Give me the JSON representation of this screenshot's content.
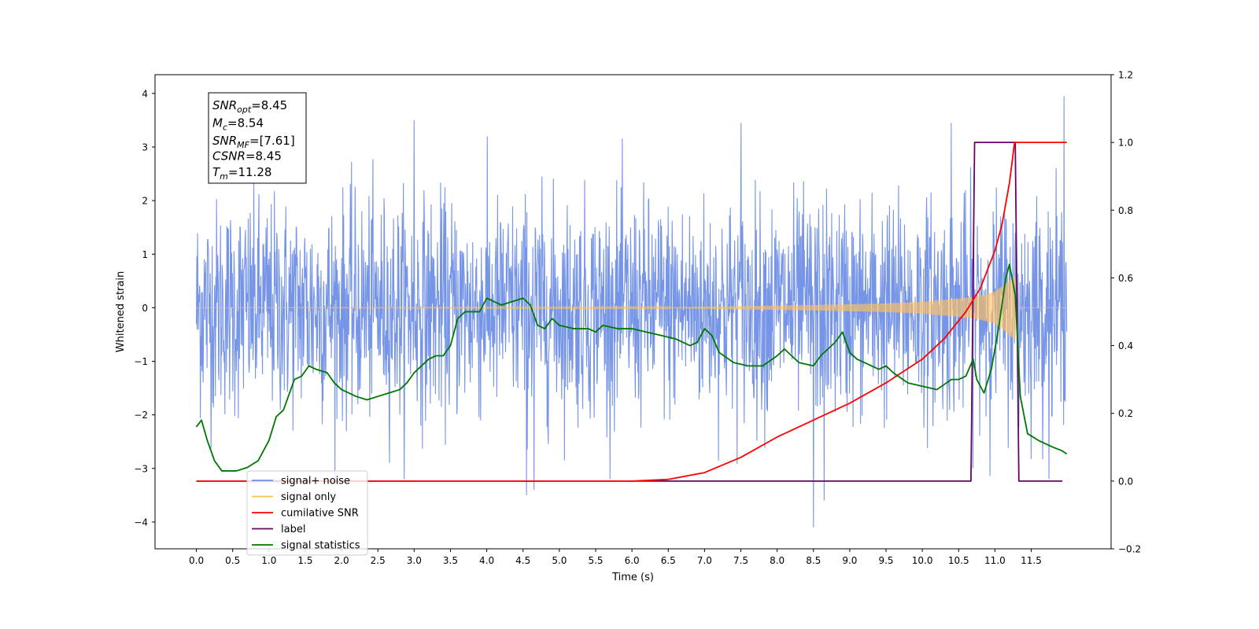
{
  "chart_data": {
    "type": "line",
    "xlabel": "Time (s)",
    "ylabel": "Whitened strain",
    "xlim": [
      -0.57,
      12.6
    ],
    "ylim": [
      -4.5,
      4.35
    ],
    "y2lim": [
      -0.2,
      1.2
    ],
    "x_ticks": [
      0.0,
      0.5,
      1.0,
      1.5,
      2.0,
      2.5,
      3.0,
      3.5,
      4.0,
      4.5,
      5.0,
      5.5,
      6.0,
      6.5,
      7.0,
      7.5,
      8.0,
      8.5,
      9.0,
      9.5,
      10.0,
      10.5,
      11.0,
      11.5
    ],
    "x_tick_labels": [
      "0.0",
      "0.5",
      "1.0",
      "1.5",
      "2.0",
      "2.5",
      "3.0",
      "3.5",
      "4.0",
      "4.5",
      "5.0",
      "5.5",
      "6.0",
      "6.5",
      "7.0",
      "7.5",
      "8.0",
      "8.5",
      "9.0",
      "9.5",
      "10.0",
      "10.5",
      "11.0",
      "11.5"
    ],
    "y_ticks": [
      -4,
      -3,
      -2,
      -1,
      0,
      1,
      2,
      3,
      4
    ],
    "y_tick_labels": [
      "−4",
      "−3",
      "−2",
      "−1",
      "0",
      "1",
      "2",
      "3",
      "4"
    ],
    "y2_ticks": [
      -0.2,
      0.0,
      0.2,
      0.4,
      0.6,
      0.8,
      1.0,
      1.2
    ],
    "y2_tick_labels": [
      "−0.2",
      "0.0",
      "0.2",
      "0.4",
      "0.6",
      "0.8",
      "1.0",
      "1.2"
    ],
    "grid": false,
    "legend_position": "lower-left",
    "legend": [
      {
        "label": "signal+ noise",
        "color": "#6f8fe6"
      },
      {
        "label": "signal only",
        "color": "#ffbf4d"
      },
      {
        "label": "cumilative SNR",
        "color": "#ff0000"
      },
      {
        "label": "label",
        "color": "#6a006a"
      },
      {
        "label": "signal statistics",
        "color": "#007700"
      }
    ],
    "annotation": {
      "lines": [
        {
          "base": "SNR",
          "sub": "opt",
          "value": "=8.45"
        },
        {
          "base": "M",
          "sub": "c",
          "value": "=8.54"
        },
        {
          "base": "SNR",
          "sub": "MF",
          "value": "=[7.61]"
        },
        {
          "base": "CSNR",
          "sub": "",
          "value": "=8.45"
        },
        {
          "base": "T",
          "sub": "m",
          "value": "=11.28"
        }
      ]
    },
    "series": [
      {
        "name": "signal+ noise",
        "axis": "left",
        "color": "#6f8fe6",
        "x_range": [
          0.0,
          11.99
        ],
        "typical_envelope": [
          -2.3,
          2.3
        ],
        "extremes": [
          {
            "x": 11.95,
            "y": 3.95
          },
          {
            "x": 3.0,
            "y": 3.5
          },
          {
            "x": 7.5,
            "y": 3.45
          },
          {
            "x": 10.4,
            "y": 3.45
          },
          {
            "x": 8.5,
            "y": -4.1
          },
          {
            "x": 4.55,
            "y": -3.5
          },
          {
            "x": 8.65,
            "y": -3.6
          },
          {
            "x": 4.65,
            "y": -3.4
          }
        ]
      },
      {
        "name": "signal only",
        "axis": "left",
        "color": "#ffbf4d",
        "x": [
          0.0,
          6.5,
          7.5,
          8.5,
          9.5,
          10.0,
          10.5,
          10.8,
          11.0,
          11.15,
          11.28,
          11.3,
          11.99
        ],
        "amplitude": [
          0.0,
          0.01,
          0.03,
          0.05,
          0.08,
          0.11,
          0.17,
          0.22,
          0.3,
          0.45,
          0.6,
          0.0,
          0.0
        ]
      },
      {
        "name": "cumilative SNR",
        "axis": "right",
        "color": "#ff0000",
        "x": [
          0.0,
          6.0,
          6.5,
          7.0,
          7.5,
          8.0,
          8.5,
          9.0,
          9.5,
          10.0,
          10.3,
          10.6,
          10.8,
          11.0,
          11.1,
          11.2,
          11.27,
          11.3,
          11.99
        ],
        "values": [
          0.0,
          0.0,
          0.005,
          0.025,
          0.07,
          0.13,
          0.18,
          0.23,
          0.29,
          0.36,
          0.42,
          0.5,
          0.57,
          0.68,
          0.76,
          0.88,
          1.0,
          1.0,
          1.0
        ]
      },
      {
        "name": "label",
        "axis": "right",
        "color": "#6a006a",
        "x": [
          0.0,
          10.67,
          10.72,
          11.28,
          11.33,
          11.93
        ],
        "values": [
          0.0,
          0.0,
          1.0,
          1.0,
          0.0,
          0.0
        ]
      },
      {
        "name": "signal statistics",
        "axis": "right",
        "color": "#007700",
        "x": [
          0.0,
          0.07,
          0.15,
          0.25,
          0.35,
          0.45,
          0.55,
          0.7,
          0.85,
          1.0,
          1.1,
          1.2,
          1.35,
          1.45,
          1.55,
          1.65,
          1.8,
          1.9,
          2.0,
          2.1,
          2.2,
          2.35,
          2.5,
          2.65,
          2.8,
          2.9,
          3.0,
          3.1,
          3.2,
          3.3,
          3.4,
          3.5,
          3.6,
          3.7,
          3.8,
          3.9,
          4.0,
          4.1,
          4.2,
          4.35,
          4.5,
          4.6,
          4.7,
          4.8,
          4.9,
          5.0,
          5.2,
          5.4,
          5.5,
          5.6,
          5.8,
          6.0,
          6.2,
          6.4,
          6.6,
          6.8,
          6.9,
          7.0,
          7.1,
          7.2,
          7.4,
          7.6,
          7.8,
          8.0,
          8.1,
          8.3,
          8.5,
          8.6,
          8.8,
          8.9,
          9.0,
          9.1,
          9.2,
          9.4,
          9.5,
          9.6,
          9.8,
          10.0,
          10.2,
          10.4,
          10.5,
          10.6,
          10.7,
          10.75,
          10.85,
          10.95,
          11.05,
          11.15,
          11.2,
          11.28,
          11.35,
          11.45,
          11.6,
          11.8,
          11.92,
          11.99
        ],
        "values": [
          0.16,
          0.18,
          0.12,
          0.06,
          0.03,
          0.03,
          0.03,
          0.04,
          0.06,
          0.12,
          0.19,
          0.21,
          0.3,
          0.31,
          0.34,
          0.33,
          0.32,
          0.29,
          0.27,
          0.26,
          0.25,
          0.24,
          0.25,
          0.26,
          0.27,
          0.29,
          0.32,
          0.34,
          0.36,
          0.37,
          0.37,
          0.4,
          0.48,
          0.5,
          0.5,
          0.5,
          0.54,
          0.53,
          0.52,
          0.53,
          0.54,
          0.52,
          0.46,
          0.45,
          0.48,
          0.46,
          0.45,
          0.45,
          0.44,
          0.46,
          0.45,
          0.45,
          0.44,
          0.43,
          0.42,
          0.4,
          0.41,
          0.45,
          0.43,
          0.38,
          0.35,
          0.34,
          0.34,
          0.37,
          0.39,
          0.35,
          0.34,
          0.37,
          0.41,
          0.44,
          0.38,
          0.36,
          0.35,
          0.33,
          0.34,
          0.32,
          0.29,
          0.28,
          0.27,
          0.3,
          0.3,
          0.31,
          0.36,
          0.3,
          0.26,
          0.33,
          0.45,
          0.6,
          0.64,
          0.55,
          0.25,
          0.14,
          0.12,
          0.1,
          0.09,
          0.08
        ]
      }
    ]
  }
}
